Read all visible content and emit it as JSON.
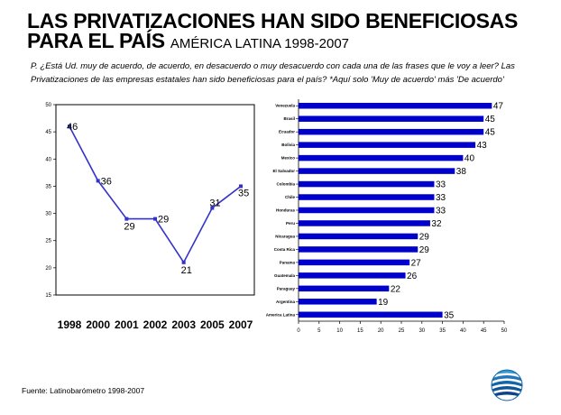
{
  "header": {
    "title_line1": "LAS PRIVATIZACIONES HAN SIDO BENEFICIOSAS",
    "title_line2": "PARA EL PAÍS",
    "subtitle": "AMÉRICA LATINA 1998-2007"
  },
  "question": "P. ¿Está Ud. muy de acuerdo, de acuerdo, en desacuerdo o muy desacuerdo con cada una de las frases que le voy a leer? Las Privatizaciones de las empresas estatales han sido beneficiosas para el país? *Aquí solo 'Muy de acuerdo' más 'De acuerdo'",
  "source": "Fuente: Latinobarómetro 1998-2007",
  "colors": {
    "line": "#3333cc",
    "bar": "#0000cc",
    "frame": "#000000"
  },
  "logo": "latinobarometro-globe-logo",
  "chart_data": [
    {
      "type": "line",
      "x": [
        "1998",
        "2000",
        "2001",
        "2002",
        "2003",
        "2005",
        "2007"
      ],
      "series": [
        {
          "values": [
            46,
            36,
            29,
            29,
            21,
            31,
            35
          ]
        }
      ],
      "ylim": [
        15,
        50
      ],
      "yticks": [
        "15",
        "20",
        "25",
        "30",
        "35",
        "40",
        "45",
        "50"
      ],
      "grid": false
    },
    {
      "type": "bar",
      "orientation": "horizontal",
      "categories": [
        "Venezuela",
        "Brasil",
        "Ecuador",
        "Bolivia",
        "Mexico",
        "El Salvador",
        "Colombia",
        "Chile",
        "Honduras",
        "Peru",
        "Nicaragua",
        "Costa Rica",
        "Panama",
        "Guatemala",
        "Paraguay",
        "Argentina",
        "America Latina"
      ],
      "values": [
        47,
        45,
        45,
        43,
        40,
        38,
        33,
        33,
        33,
        32,
        29,
        29,
        27,
        26,
        22,
        19,
        35
      ],
      "xlim": [
        0,
        50
      ],
      "xticks": [
        "0",
        "5",
        "10",
        "15",
        "20",
        "25",
        "30",
        "35",
        "40",
        "45",
        "50"
      ],
      "grid": false
    }
  ]
}
